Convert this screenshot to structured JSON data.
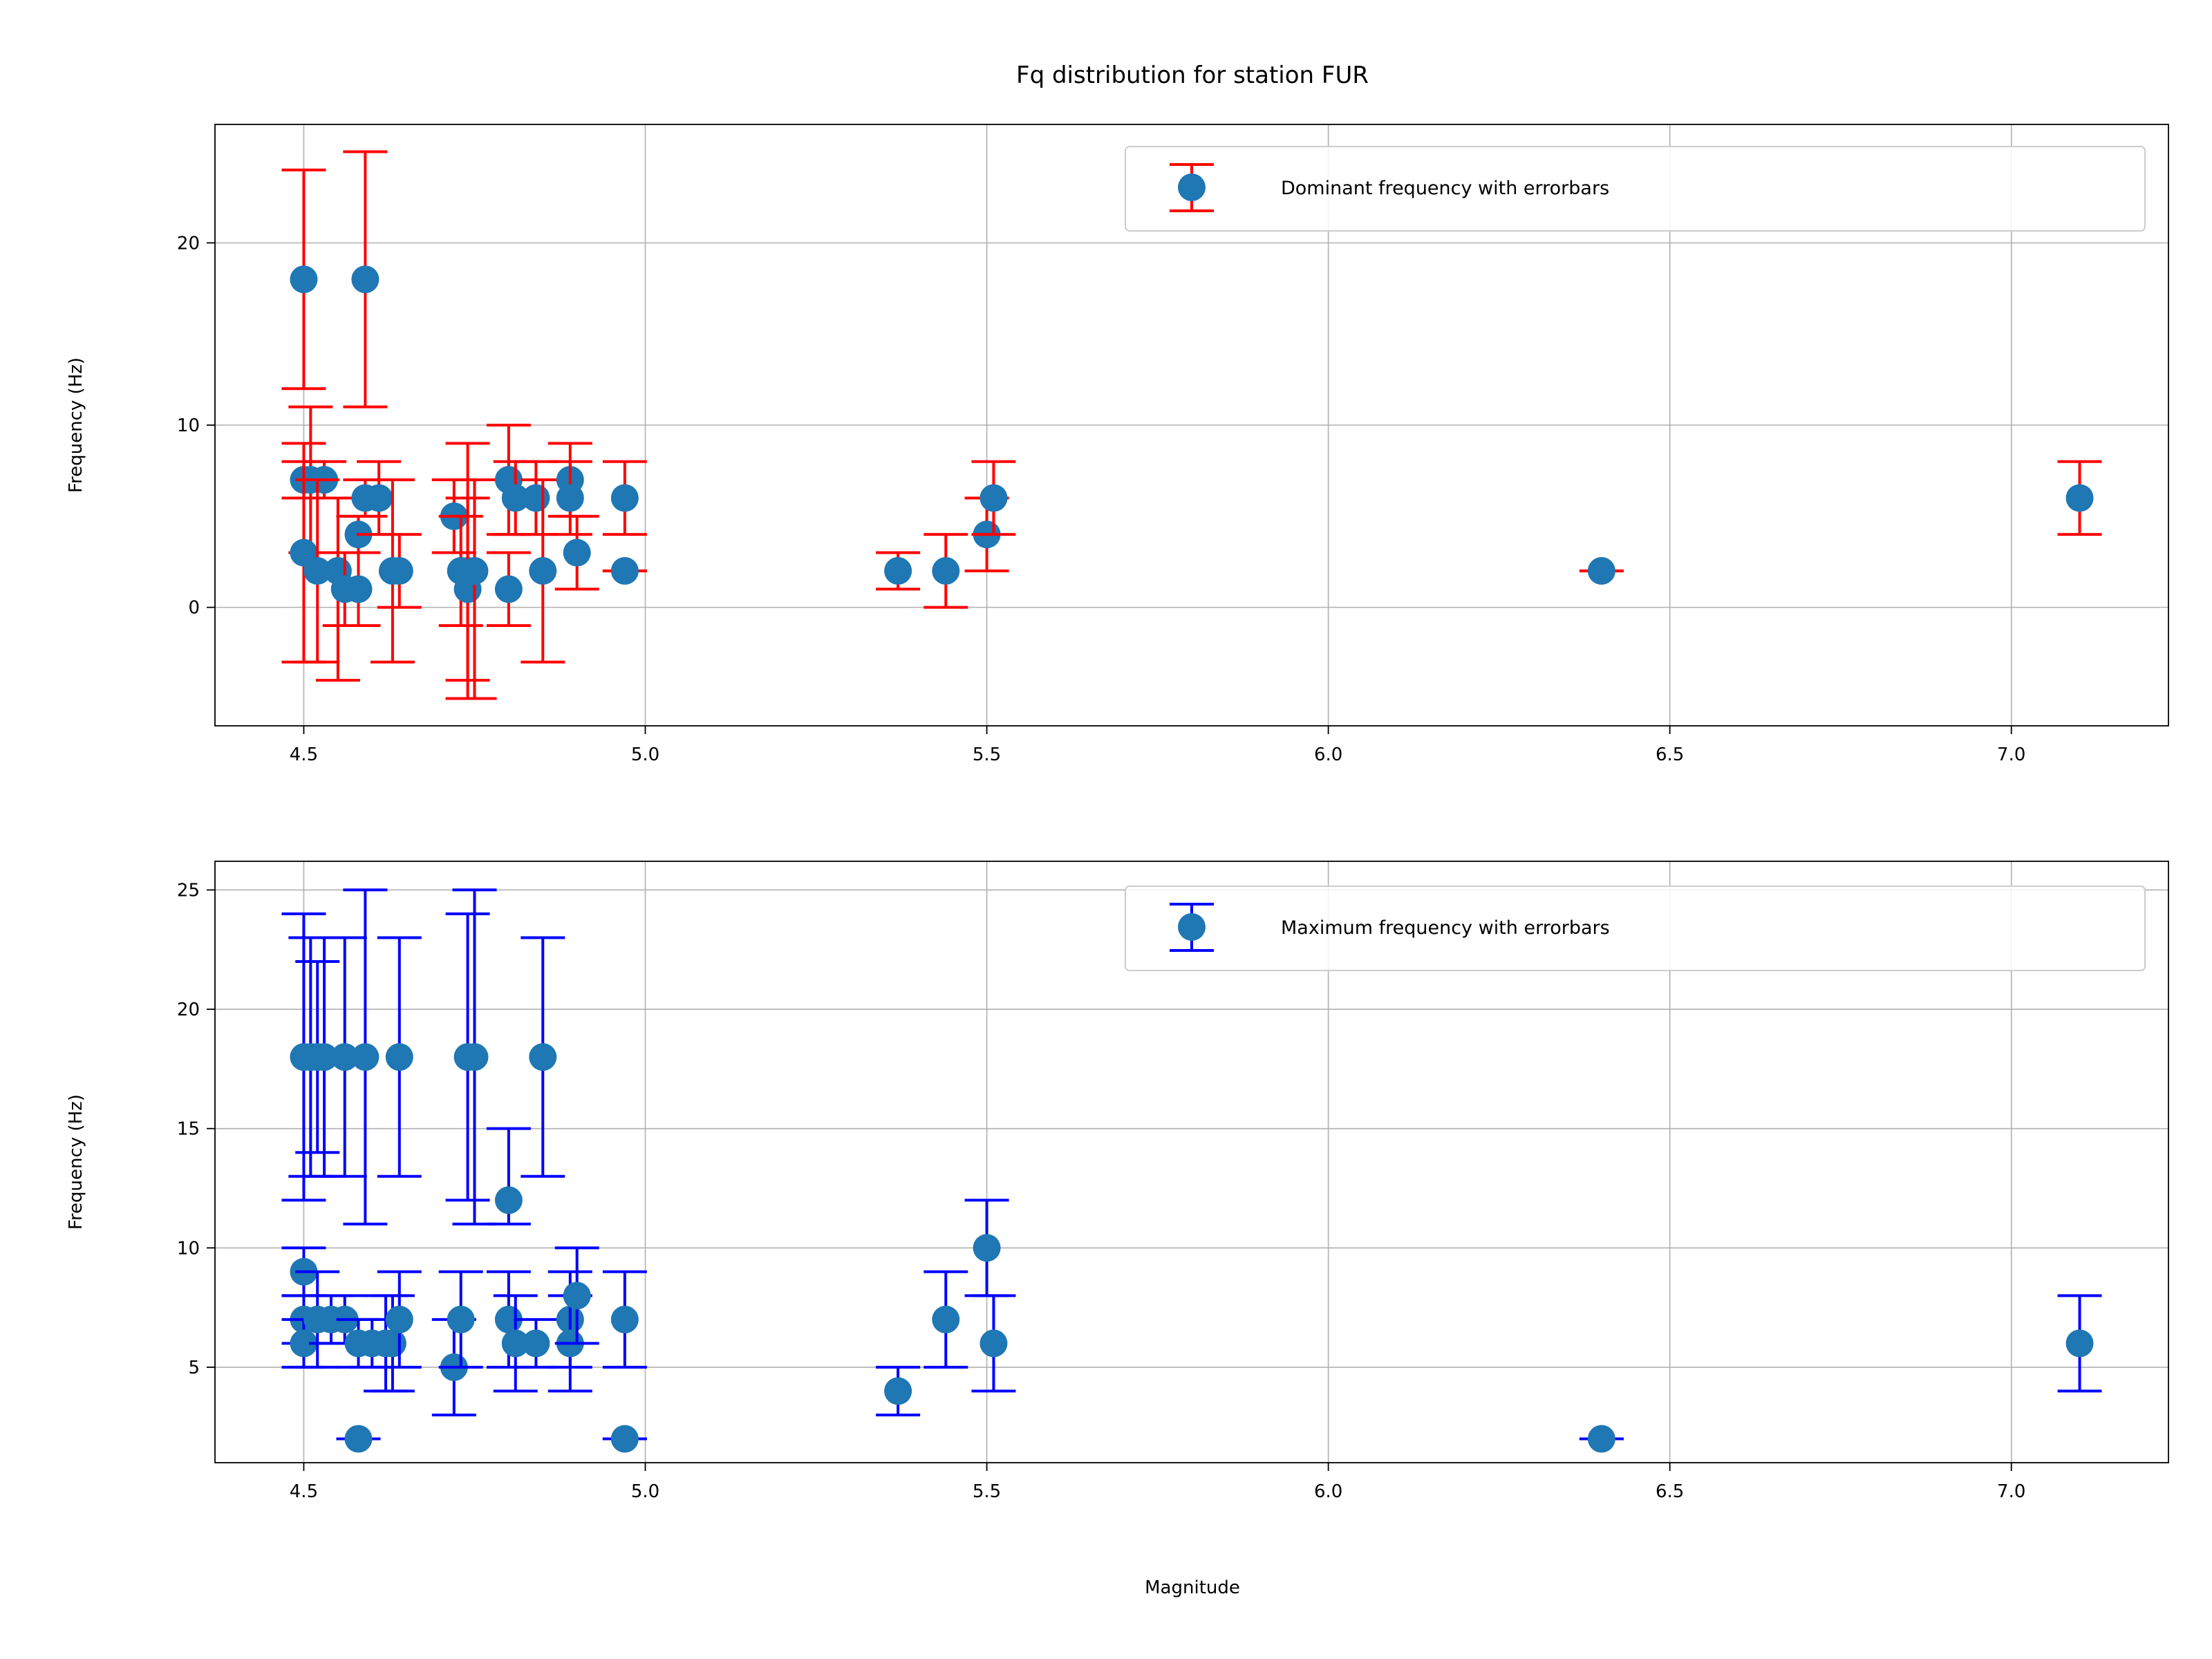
{
  "chart_data": [
    {
      "type": "scatter",
      "title": "Fq distribution for station FUR",
      "xlabel": "",
      "ylabel": "Frequency (Hz)",
      "xlim": [
        4.37,
        7.23
      ],
      "ylim": [
        -6.5,
        26.5
      ],
      "xticks": [
        "4.5",
        "5.0",
        "5.5",
        "6.0",
        "6.5",
        "7.0"
      ],
      "yticks": [
        "0",
        "10",
        "20"
      ],
      "grid": true,
      "legend": "top-right",
      "marker_color": "#1f77b4",
      "errorbar_color": "#ff0000",
      "series": [
        {
          "name": "Dominant frequency with errorbars",
          "points": [
            {
              "x": 4.5,
              "y": 18,
              "low": 12,
              "high": 24
            },
            {
              "x": 4.59,
              "y": 18,
              "low": 11,
              "high": 25
            },
            {
              "x": 4.5,
              "y": 7,
              "low": 6,
              "high": 8
            },
            {
              "x": 4.51,
              "y": 7,
              "low": 3,
              "high": 11
            },
            {
              "x": 4.53,
              "y": 7,
              "low": 6,
              "high": 8
            },
            {
              "x": 4.5,
              "y": 3,
              "low": -3,
              "high": 9
            },
            {
              "x": 4.52,
              "y": 2,
              "low": -3,
              "high": 7
            },
            {
              "x": 4.55,
              "y": 2,
              "low": -4,
              "high": 6
            },
            {
              "x": 4.56,
              "y": 1,
              "low": -1,
              "high": 3
            },
            {
              "x": 4.58,
              "y": 1,
              "low": -1,
              "high": 3
            },
            {
              "x": 4.58,
              "y": 4,
              "low": 3,
              "high": 5
            },
            {
              "x": 4.59,
              "y": 6,
              "low": 5,
              "high": 7
            },
            {
              "x": 4.61,
              "y": 6,
              "low": 4,
              "high": 8
            },
            {
              "x": 4.63,
              "y": 2,
              "low": -3,
              "high": 7
            },
            {
              "x": 4.64,
              "y": 2,
              "low": 0,
              "high": 4
            },
            {
              "x": 4.72,
              "y": 5,
              "low": 3,
              "high": 7
            },
            {
              "x": 4.73,
              "y": 2,
              "low": -1,
              "high": 5
            },
            {
              "x": 4.74,
              "y": 2,
              "low": -5,
              "high": 9
            },
            {
              "x": 4.74,
              "y": 1,
              "low": -4,
              "high": 6
            },
            {
              "x": 4.75,
              "y": 2,
              "low": -5,
              "high": 7
            },
            {
              "x": 4.8,
              "y": 7,
              "low": 4,
              "high": 10
            },
            {
              "x": 4.8,
              "y": 1,
              "low": -1,
              "high": 3
            },
            {
              "x": 4.81,
              "y": 6,
              "low": 4,
              "high": 8
            },
            {
              "x": 4.84,
              "y": 6,
              "low": 4,
              "high": 8
            },
            {
              "x": 4.85,
              "y": 2,
              "low": -3,
              "high": 7
            },
            {
              "x": 4.89,
              "y": 7,
              "low": 5,
              "high": 9
            },
            {
              "x": 4.89,
              "y": 6,
              "low": 4,
              "high": 8
            },
            {
              "x": 4.9,
              "y": 3,
              "low": 1,
              "high": 5
            },
            {
              "x": 4.97,
              "y": 6,
              "low": 4,
              "high": 8
            },
            {
              "x": 4.97,
              "y": 2,
              "low": 2,
              "high": 2
            },
            {
              "x": 5.37,
              "y": 2,
              "low": 1,
              "high": 3
            },
            {
              "x": 5.44,
              "y": 2,
              "low": 0,
              "high": 4
            },
            {
              "x": 5.5,
              "y": 4,
              "low": 2,
              "high": 6
            },
            {
              "x": 5.51,
              "y": 6,
              "low": 4,
              "high": 8
            },
            {
              "x": 6.4,
              "y": 2,
              "low": 2,
              "high": 2
            },
            {
              "x": 7.1,
              "y": 6,
              "low": 4,
              "high": 8
            }
          ]
        }
      ]
    },
    {
      "type": "scatter",
      "title": "",
      "xlabel": "Magnitude",
      "ylabel": "Frequency (Hz)",
      "xlim": [
        4.37,
        7.23
      ],
      "ylim": [
        1,
        26.2
      ],
      "xticks": [
        "4.5",
        "5.0",
        "5.5",
        "6.0",
        "6.5",
        "7.0"
      ],
      "yticks": [
        "5",
        "10",
        "15",
        "20",
        "25"
      ],
      "grid": true,
      "legend": "top-right",
      "marker_color": "#1f77b4",
      "errorbar_color": "#0000ff",
      "series": [
        {
          "name": "Maximum frequency with errorbars",
          "points": [
            {
              "x": 4.5,
              "y": 18,
              "low": 12,
              "high": 24
            },
            {
              "x": 4.51,
              "y": 18,
              "low": 13,
              "high": 23
            },
            {
              "x": 4.52,
              "y": 18,
              "low": 14,
              "high": 22
            },
            {
              "x": 4.53,
              "y": 18,
              "low": 13,
              "high": 23
            },
            {
              "x": 4.56,
              "y": 18,
              "low": 13,
              "high": 23
            },
            {
              "x": 4.59,
              "y": 18,
              "low": 11,
              "high": 25
            },
            {
              "x": 4.64,
              "y": 18,
              "low": 13,
              "high": 23
            },
            {
              "x": 4.74,
              "y": 18,
              "low": 12,
              "high": 24
            },
            {
              "x": 4.75,
              "y": 18,
              "low": 11,
              "high": 25
            },
            {
              "x": 4.85,
              "y": 18,
              "low": 13,
              "high": 23
            },
            {
              "x": 4.5,
              "y": 9,
              "low": 8,
              "high": 10
            },
            {
              "x": 4.5,
              "y": 7,
              "low": 6,
              "high": 8
            },
            {
              "x": 4.5,
              "y": 6,
              "low": 5,
              "high": 7
            },
            {
              "x": 4.52,
              "y": 7,
              "low": 5,
              "high": 9
            },
            {
              "x": 4.54,
              "y": 7,
              "low": 6,
              "high": 8
            },
            {
              "x": 4.56,
              "y": 7,
              "low": 6,
              "high": 8
            },
            {
              "x": 4.58,
              "y": 6,
              "low": 5,
              "high": 7
            },
            {
              "x": 4.6,
              "y": 6,
              "low": 5,
              "high": 7
            },
            {
              "x": 4.62,
              "y": 6,
              "low": 4,
              "high": 8
            },
            {
              "x": 4.63,
              "y": 6,
              "low": 4,
              "high": 8
            },
            {
              "x": 4.64,
              "y": 7,
              "low": 5,
              "high": 9
            },
            {
              "x": 4.58,
              "y": 2,
              "low": 2,
              "high": 2
            },
            {
              "x": 4.72,
              "y": 5,
              "low": 3,
              "high": 7
            },
            {
              "x": 4.73,
              "y": 7,
              "low": 5,
              "high": 9
            },
            {
              "x": 4.8,
              "y": 12,
              "low": 11,
              "high": 15
            },
            {
              "x": 4.8,
              "y": 7,
              "low": 5,
              "high": 9
            },
            {
              "x": 4.81,
              "y": 6,
              "low": 4,
              "high": 8
            },
            {
              "x": 4.84,
              "y": 6,
              "low": 5,
              "high": 7
            },
            {
              "x": 4.89,
              "y": 7,
              "low": 5,
              "high": 9
            },
            {
              "x": 4.89,
              "y": 6,
              "low": 4,
              "high": 8
            },
            {
              "x": 4.9,
              "y": 8,
              "low": 6,
              "high": 10
            },
            {
              "x": 4.97,
              "y": 7,
              "low": 5,
              "high": 9
            },
            {
              "x": 4.97,
              "y": 2,
              "low": 2,
              "high": 2
            },
            {
              "x": 5.37,
              "y": 4,
              "low": 3,
              "high": 5
            },
            {
              "x": 5.44,
              "y": 7,
              "low": 5,
              "high": 9
            },
            {
              "x": 5.5,
              "y": 10,
              "low": 8,
              "high": 12
            },
            {
              "x": 5.51,
              "y": 6,
              "low": 4,
              "high": 8
            },
            {
              "x": 6.4,
              "y": 2,
              "low": 2,
              "high": 2
            },
            {
              "x": 7.1,
              "y": 6,
              "low": 4,
              "high": 8
            }
          ]
        }
      ]
    }
  ]
}
